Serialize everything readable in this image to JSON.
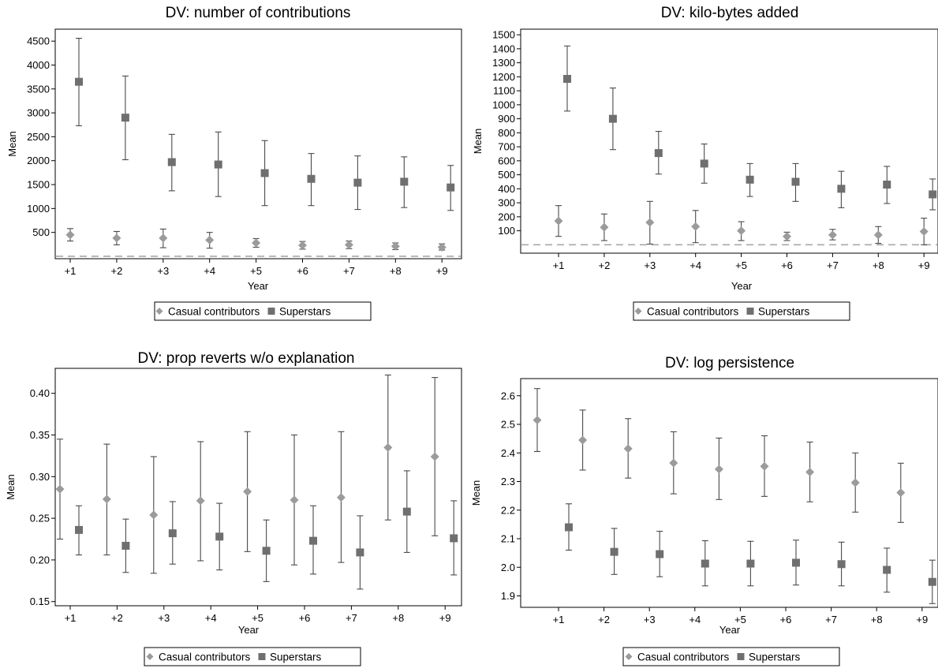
{
  "x_axis_title": "Year",
  "y_axis_title": "Mean",
  "categories": [
    "+1",
    "+2",
    "+3",
    "+4",
    "+5",
    "+6",
    "+7",
    "+8",
    "+9"
  ],
  "legend": {
    "casual": {
      "label": "Casual contributors",
      "marker": "diamond",
      "color": "#9b9b9b"
    },
    "superstars": {
      "label": "Superstars",
      "marker": "square",
      "color": "#6f6f6f"
    }
  },
  "colors": {
    "errorbar": "#4a4a4a",
    "reference_line": "#a8a8a8",
    "axis": "#000000"
  },
  "chart_data": [
    {
      "type": "scatter",
      "title": "DV: number of contributions",
      "xlabel": "Year",
      "ylabel": "Mean",
      "categories": [
        "+1",
        "+2",
        "+3",
        "+4",
        "+5",
        "+6",
        "+7",
        "+8",
        "+9"
      ],
      "ylim": [
        -50,
        4750
      ],
      "yticks": [
        500,
        1000,
        1500,
        2000,
        2500,
        3000,
        3500,
        4000,
        4500
      ],
      "reference_line": 0,
      "series": [
        {
          "name": "Casual contributors",
          "values": [
            450,
            380,
            380,
            340,
            280,
            230,
            240,
            210,
            190
          ],
          "lower": [
            320,
            240,
            180,
            170,
            190,
            150,
            160,
            140,
            130
          ],
          "upper": [
            580,
            520,
            570,
            500,
            370,
            310,
            320,
            280,
            260
          ]
        },
        {
          "name": "Superstars",
          "values": [
            3650,
            2900,
            1970,
            1920,
            1740,
            1620,
            1540,
            1560,
            1440
          ],
          "lower": [
            2730,
            2020,
            1370,
            1250,
            1060,
            1060,
            980,
            1020,
            960
          ],
          "upper": [
            4560,
            3770,
            2550,
            2600,
            2420,
            2150,
            2100,
            2080,
            1900
          ]
        }
      ]
    },
    {
      "type": "scatter",
      "title": "DV: kilo-bytes added",
      "xlabel": "Year",
      "ylabel": "Mean",
      "categories": [
        "+1",
        "+2",
        "+3",
        "+4",
        "+5",
        "+6",
        "+7",
        "+8",
        "+9"
      ],
      "ylim": [
        -60,
        1540
      ],
      "yticks": [
        100,
        200,
        300,
        400,
        500,
        600,
        700,
        800,
        900,
        1000,
        1100,
        1200,
        1300,
        1400,
        1500
      ],
      "reference_line": 0,
      "series": [
        {
          "name": "Casual contributors",
          "values": [
            170,
            125,
            160,
            130,
            100,
            60,
            70,
            70,
            95
          ],
          "lower": [
            60,
            30,
            5,
            15,
            30,
            30,
            35,
            10,
            0
          ],
          "upper": [
            280,
            220,
            310,
            245,
            165,
            90,
            110,
            130,
            190
          ]
        },
        {
          "name": "Superstars",
          "values": [
            1185,
            900,
            655,
            580,
            465,
            450,
            400,
            430,
            360
          ],
          "lower": [
            955,
            680,
            505,
            440,
            345,
            310,
            265,
            295,
            250
          ],
          "upper": [
            1420,
            1120,
            810,
            720,
            580,
            580,
            525,
            560,
            470
          ]
        }
      ]
    },
    {
      "type": "scatter",
      "title": "DV: prop reverts w/o explanation",
      "xlabel": "Year",
      "ylabel": "Mean",
      "categories": [
        "+1",
        "+2",
        "+3",
        "+4",
        "+5",
        "+6",
        "+7",
        "+8",
        "+9"
      ],
      "ylim": [
        0.145,
        0.43
      ],
      "yticks": [
        0.15,
        0.2,
        0.25,
        0.3,
        0.35,
        0.4
      ],
      "series": [
        {
          "name": "Casual contributors",
          "values": [
            0.285,
            0.273,
            0.254,
            0.271,
            0.282,
            0.272,
            0.275,
            0.335,
            0.324
          ],
          "lower": [
            0.225,
            0.206,
            0.184,
            0.199,
            0.21,
            0.194,
            0.197,
            0.248,
            0.229
          ],
          "upper": [
            0.345,
            0.339,
            0.324,
            0.342,
            0.354,
            0.35,
            0.354,
            0.422,
            0.419
          ]
        },
        {
          "name": "Superstars",
          "values": [
            0.236,
            0.217,
            0.232,
            0.228,
            0.211,
            0.223,
            0.209,
            0.258,
            0.226
          ],
          "lower": [
            0.206,
            0.185,
            0.195,
            0.188,
            0.174,
            0.183,
            0.165,
            0.209,
            0.182
          ],
          "upper": [
            0.265,
            0.249,
            0.27,
            0.268,
            0.248,
            0.265,
            0.253,
            0.307,
            0.271
          ]
        }
      ]
    },
    {
      "type": "scatter",
      "title": "DV: log persistence",
      "xlabel": "Year",
      "ylabel": "Mean",
      "categories": [
        "+1",
        "+2",
        "+3",
        "+4",
        "+5",
        "+6",
        "+7",
        "+8",
        "+9"
      ],
      "ylim": [
        1.86,
        2.66
      ],
      "yticks": [
        1.9,
        2.0,
        2.1,
        2.2,
        2.3,
        2.4,
        2.5,
        2.6
      ],
      "series": [
        {
          "name": "Casual contributors",
          "values": [
            2.515,
            2.445,
            2.415,
            2.365,
            2.343,
            2.353,
            2.333,
            2.296,
            2.261
          ],
          "lower": [
            2.405,
            2.34,
            2.312,
            2.257,
            2.237,
            2.248,
            2.229,
            2.193,
            2.157
          ],
          "upper": [
            2.625,
            2.55,
            2.52,
            2.474,
            2.452,
            2.46,
            2.438,
            2.4,
            2.364
          ]
        },
        {
          "name": "Superstars",
          "values": [
            2.14,
            2.054,
            2.046,
            2.013,
            2.013,
            2.016,
            2.011,
            1.991,
            1.949
          ],
          "lower": [
            2.06,
            1.975,
            1.967,
            1.935,
            1.935,
            1.938,
            1.935,
            1.913,
            1.873
          ],
          "upper": [
            2.222,
            2.136,
            2.126,
            2.093,
            2.091,
            2.095,
            2.088,
            2.067,
            2.025
          ]
        }
      ]
    }
  ]
}
